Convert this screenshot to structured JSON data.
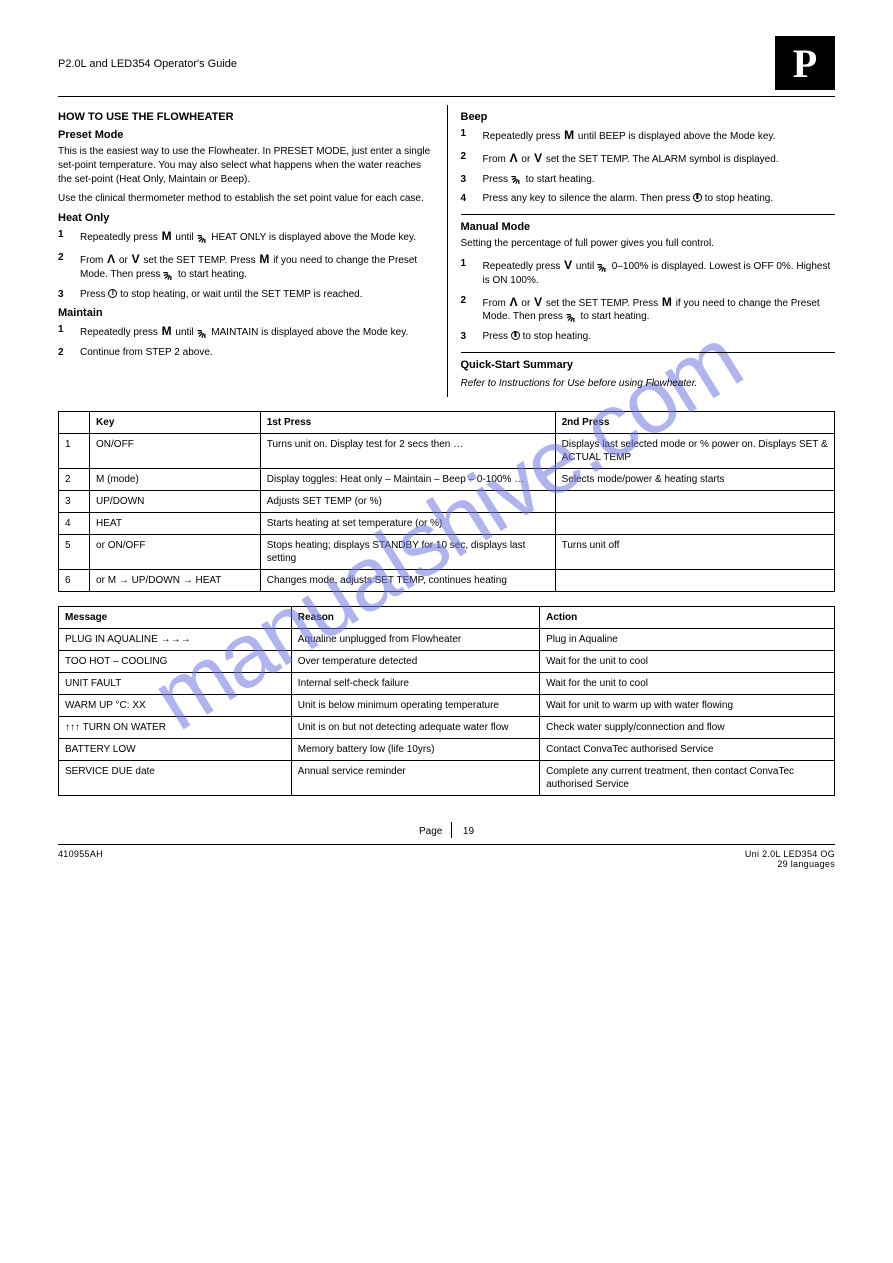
{
  "watermark": "manualshive.com",
  "header": {
    "title": "P2.0L and LED354 Operator's Guide",
    "badge": "P"
  },
  "left": {
    "section1": {
      "title": "HOW TO USE THE FLOWHEATER"
    },
    "s_preset": {
      "title": "Preset Mode",
      "p1": "This is the easiest way to use the Flowheater. In PRESET MODE, just enter a single set-point temperature. You may also select what happens when the water reaches the set-point (Heat Only, Maintain or Beep).",
      "p2": "Use the clinical thermometer method to establish the set point value for each case."
    },
    "s_heat": {
      "title": "Heat Only",
      "steps": [
        "Repeatedly press <M> until <rays> HEAT ONLY is displayed above the Mode key.",
        "From <up> or <down> set the SET TEMP. Press <M> if you need to change the Preset Mode. Then press <rays> to start heating.",
        "Press <power> to stop heating, or wait until the SET TEMP is reached."
      ]
    },
    "s_maintain": {
      "title": "Maintain",
      "steps": [
        "Repeatedly press <M> until <rays> MAINTAIN is displayed above the Mode key.",
        "Continue from STEP 2 above."
      ]
    },
    "right_top": {
      "title": "Beep",
      "steps": [
        "Repeatedly press <M> until BEEP is displayed above the Mode key.",
        "From <up> or <down> set the SET TEMP. The ALARM symbol is displayed.",
        "Press <rays> to start heating.",
        "Press any key to silence the alarm. Then press <power> to stop heating."
      ]
    },
    "s_manual": {
      "title": "Manual Mode",
      "p1": "Setting the percentage of full power gives you full control.",
      "steps": [
        "Repeatedly press <down> until <rays> 0–100% is displayed. Lowest is OFF 0%. Highest is ON 100%.",
        "From <up> or <down> set the SET TEMP. Press <M> if you need to change the Preset Mode. Then press <rays> to start heating.",
        "Press <power> to stop heating."
      ]
    },
    "quick": {
      "title": "Quick-Start Summary",
      "note": "Refer to Instructions for Use before using Flowheater."
    }
  },
  "table1": {
    "headers": [
      "",
      "Key",
      "1st Press",
      "2nd Press"
    ],
    "rows": [
      [
        "1",
        "ON/OFF",
        "Turns unit on. Display test for 2 secs then …",
        "Displays last selected mode or % power on. Displays SET & ACTUAL TEMP"
      ],
      [
        "2",
        "M (mode)",
        "Display toggles: Heat only – Maintain – Beep – 0-100% …",
        "Selects mode/power & heating starts"
      ],
      [
        "3",
        "UP/DOWN",
        "Adjusts SET TEMP (or %)",
        ""
      ],
      [
        "4",
        "HEAT",
        "Starts heating at set temperature (or %)",
        ""
      ],
      [
        "5",
        "or ON/OFF",
        "Stops heating; displays STANDBY for 10 sec, displays last setting",
        "Turns unit off"
      ],
      [
        "6",
        "or M → UP/DOWN → HEAT",
        "Changes mode, adjusts SET TEMP, continues heating",
        ""
      ]
    ]
  },
  "table2": {
    "headers": [
      "Message",
      "Reason",
      "Action"
    ],
    "rows": [
      [
        "PLUG IN AQUALINE →→→",
        "Aqualine unplugged from Flowheater",
        "Plug in Aqualine"
      ],
      [
        "TOO HOT – COOLING",
        "Over temperature detected",
        "Wait for the unit to cool"
      ],
      [
        "UNIT FAULT",
        "Internal self-check failure",
        "Wait for the unit to cool"
      ],
      [
        "WARM UP °C: XX",
        "Unit is below minimum operating temperature",
        "Wait for unit to warm up with water flowing"
      ],
      [
        "↑↑↑ TURN ON WATER",
        "Unit is on but not detecting adequate water flow",
        "Check water supply/connection and flow"
      ],
      [
        "BATTERY LOW",
        "Memory battery low (life 10yrs)",
        "Contact ConvaTec authorised Service"
      ],
      [
        "SERVICE DUE date",
        "Annual service reminder",
        "Complete any current treatment, then contact ConvaTec authorised Service"
      ]
    ]
  },
  "footer": {
    "page_label": "Page",
    "page_num": "19",
    "left": "410955AH",
    "right1": "Uni 2.0L LED354 OG",
    "right2": "29 languages"
  }
}
